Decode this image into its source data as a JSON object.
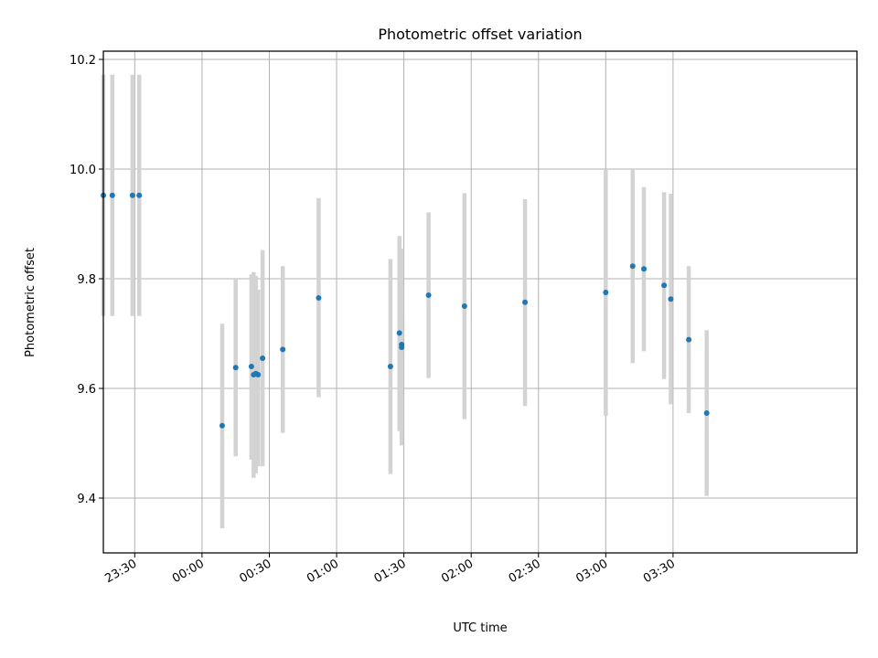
{
  "chart_data": {
    "type": "scatter",
    "title": "Photometric offset variation",
    "xlabel": "UTC time",
    "ylabel": "Photometric offset",
    "ylim": [
      9.3,
      10.215
    ],
    "xlim": [
      "23:16",
      "04:52"
    ],
    "x_ticks": [
      "23:30",
      "00:00",
      "00:30",
      "01:00",
      "01:30",
      "02:00",
      "02:30",
      "03:00",
      "03:30"
    ],
    "y_ticks": [
      "9.4",
      "9.6",
      "9.8",
      "10.0",
      "10.2"
    ],
    "grid": true,
    "colors": {
      "points": "#1f77b4",
      "error_bars": "#d3d3d3",
      "grid": "#b0b0b0"
    },
    "series": [
      {
        "points": [
          {
            "x": "23:16",
            "y": 9.952,
            "ylow": 9.732,
            "yhigh": 10.172
          },
          {
            "x": "23:20",
            "y": 9.952,
            "ylow": 9.732,
            "yhigh": 10.172
          },
          {
            "x": "23:29",
            "y": 9.952,
            "ylow": 9.732,
            "yhigh": 10.172
          },
          {
            "x": "23:32",
            "y": 9.952,
            "ylow": 9.732,
            "yhigh": 10.172
          },
          {
            "x": "00:09",
            "y": 9.532,
            "ylow": 9.345,
            "yhigh": 9.718
          },
          {
            "x": "00:15",
            "y": 9.638,
            "ylow": 9.476,
            "yhigh": 9.8
          },
          {
            "x": "00:22",
            "y": 9.64,
            "ylow": 9.47,
            "yhigh": 9.808
          },
          {
            "x": "00:23",
            "y": 9.625,
            "ylow": 9.437,
            "yhigh": 9.812
          },
          {
            "x": "00:24",
            "y": 9.627,
            "ylow": 9.445,
            "yhigh": 9.805
          },
          {
            "x": "00:25",
            "y": 9.625,
            "ylow": 9.458,
            "yhigh": 9.78
          },
          {
            "x": "00:27",
            "y": 9.655,
            "ylow": 9.458,
            "yhigh": 9.852
          },
          {
            "x": "00:36",
            "y": 9.671,
            "ylow": 9.519,
            "yhigh": 9.823
          },
          {
            "x": "00:52",
            "y": 9.765,
            "ylow": 9.584,
            "yhigh": 9.947
          },
          {
            "x": "01:24",
            "y": 9.64,
            "ylow": 9.444,
            "yhigh": 9.836
          },
          {
            "x": "01:28",
            "y": 9.701,
            "ylow": 9.522,
            "yhigh": 9.878
          },
          {
            "x": "01:29",
            "y": 9.68,
            "ylow": 9.512,
            "yhigh": 9.855
          },
          {
            "x": "01:29",
            "y": 9.675,
            "ylow": 9.496,
            "yhigh": 9.853
          },
          {
            "x": "01:41",
            "y": 9.77,
            "ylow": 9.619,
            "yhigh": 9.921
          },
          {
            "x": "01:57",
            "y": 9.75,
            "ylow": 9.544,
            "yhigh": 9.956
          },
          {
            "x": "02:24",
            "y": 9.757,
            "ylow": 9.568,
            "yhigh": 9.945
          },
          {
            "x": "03:00",
            "y": 9.775,
            "ylow": 9.55,
            "yhigh": 10.0
          },
          {
            "x": "03:12",
            "y": 9.823,
            "ylow": 9.646,
            "yhigh": 10.0
          },
          {
            "x": "03:17",
            "y": 9.818,
            "ylow": 9.668,
            "yhigh": 9.967
          },
          {
            "x": "03:26",
            "y": 9.788,
            "ylow": 9.617,
            "yhigh": 9.958
          },
          {
            "x": "03:29",
            "y": 9.763,
            "ylow": 9.571,
            "yhigh": 9.955
          },
          {
            "x": "03:37",
            "y": 9.689,
            "ylow": 9.555,
            "yhigh": 9.823
          },
          {
            "x": "03:45",
            "y": 9.555,
            "ylow": 9.404,
            "yhigh": 9.706
          }
        ]
      }
    ]
  }
}
